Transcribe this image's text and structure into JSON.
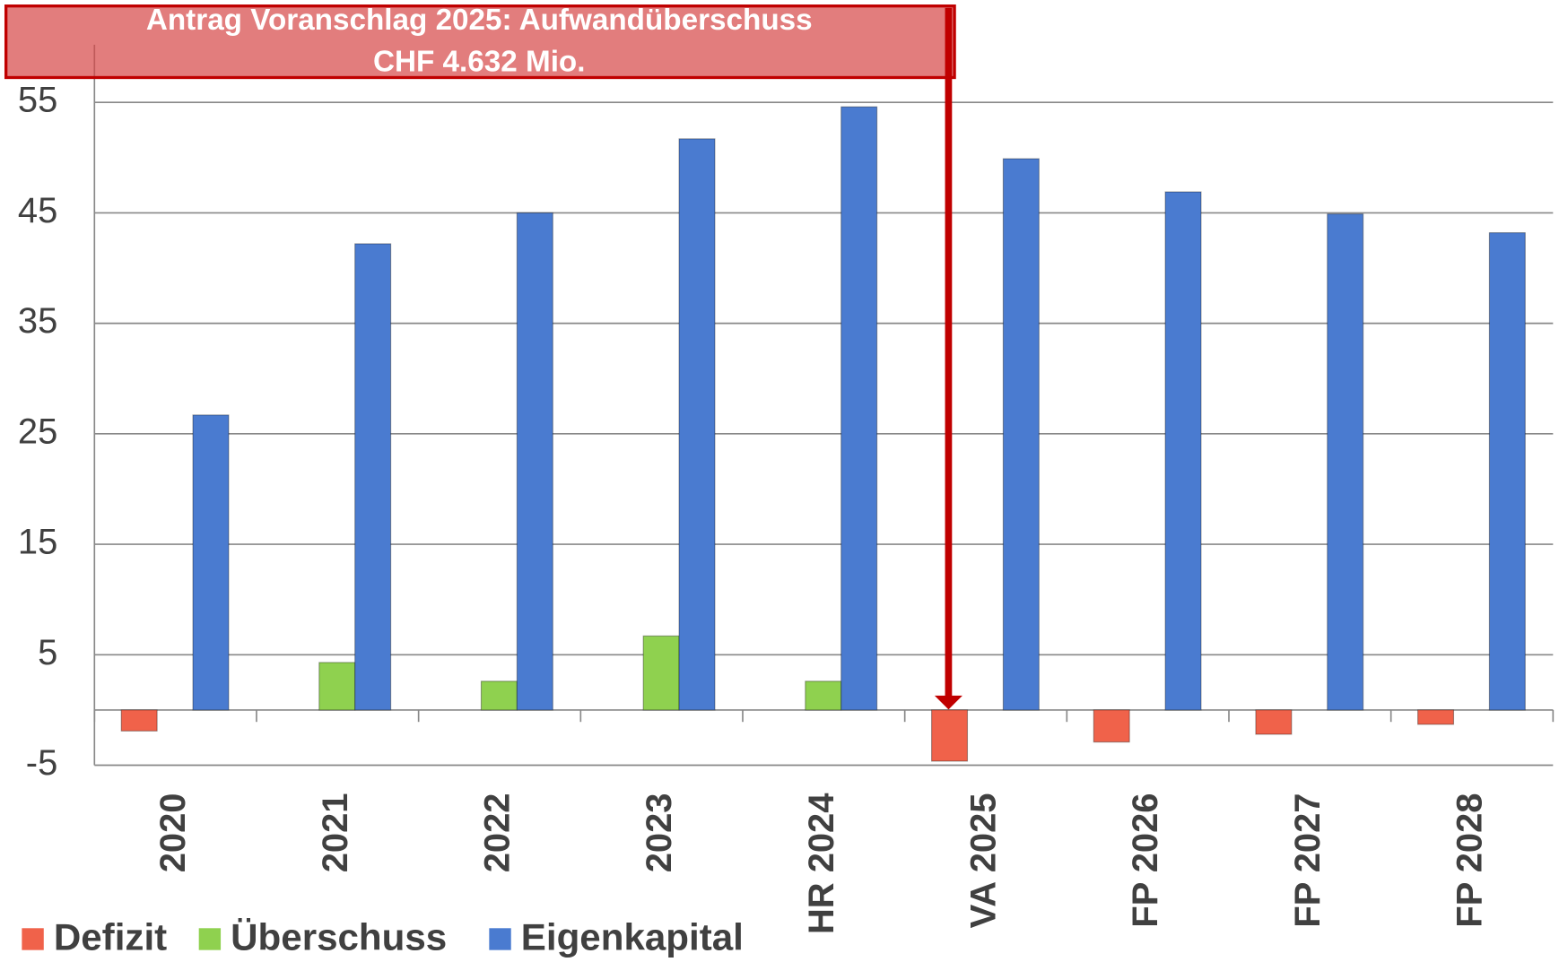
{
  "chart_data": {
    "type": "bar",
    "title_lines": [
      "Antrag Voranschlag 2025: Aufwandüberschuss",
      "CHF 4.632 Mio."
    ],
    "categories": [
      "2020",
      "2021",
      "2022",
      "2023",
      "HR 2024",
      "VA 2025",
      "FP 2026",
      "FP 2027",
      "FP 2028"
    ],
    "series": [
      {
        "name": "Defizit",
        "color": "#f0624a",
        "values": [
          -1.9,
          null,
          null,
          null,
          null,
          -4.632,
          -2.9,
          -2.2,
          -1.3
        ]
      },
      {
        "name": "Überschuss",
        "color": "#8fd14f",
        "values": [
          null,
          4.3,
          2.6,
          6.7,
          2.6,
          null,
          null,
          null,
          null
        ]
      },
      {
        "name": "Eigenkapital",
        "color": "#4a7bd0",
        "values": [
          26.7,
          42.2,
          45.0,
          51.7,
          54.6,
          49.9,
          46.9,
          44.9,
          43.2
        ]
      }
    ],
    "ylim": [
      -5,
      55
    ],
    "yticks": [
      -5,
      5,
      15,
      25,
      35,
      45,
      55
    ],
    "grid": true,
    "legend": "bottom-left"
  }
}
